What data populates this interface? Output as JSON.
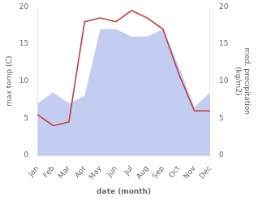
{
  "chart_data": {
    "type": "line",
    "xlabel": "date (month)",
    "ylabel": "max temp (C)",
    "y2label": "med. precipitation\n(kg/m2)",
    "categories": [
      "Jan",
      "Feb",
      "Mar",
      "Apr",
      "May",
      "Jun",
      "Jul",
      "Aug",
      "Sep",
      "Oct",
      "Nov",
      "Dec"
    ],
    "series": [
      {
        "type": "area",
        "color": "#b8c4ee",
        "axis": "y2",
        "values": [
          7.0,
          8.5,
          7.0,
          8.0,
          17.0,
          17.0,
          16.0,
          16.0,
          17.0,
          12.0,
          6.5,
          8.5
        ]
      },
      {
        "type": "line",
        "color": "#c83a3a",
        "values": [
          5.5,
          4.0,
          4.5,
          18.0,
          18.5,
          18.0,
          19.5,
          18.5,
          17.0,
          11.0,
          6.0,
          6.0
        ]
      }
    ],
    "ylim": [
      0,
      20
    ],
    "yticks": [
      0,
      5,
      10,
      15,
      20
    ],
    "y2lim": [
      0,
      20
    ],
    "y2ticks": [
      0,
      5,
      10,
      15,
      20
    ],
    "grid": false
  }
}
